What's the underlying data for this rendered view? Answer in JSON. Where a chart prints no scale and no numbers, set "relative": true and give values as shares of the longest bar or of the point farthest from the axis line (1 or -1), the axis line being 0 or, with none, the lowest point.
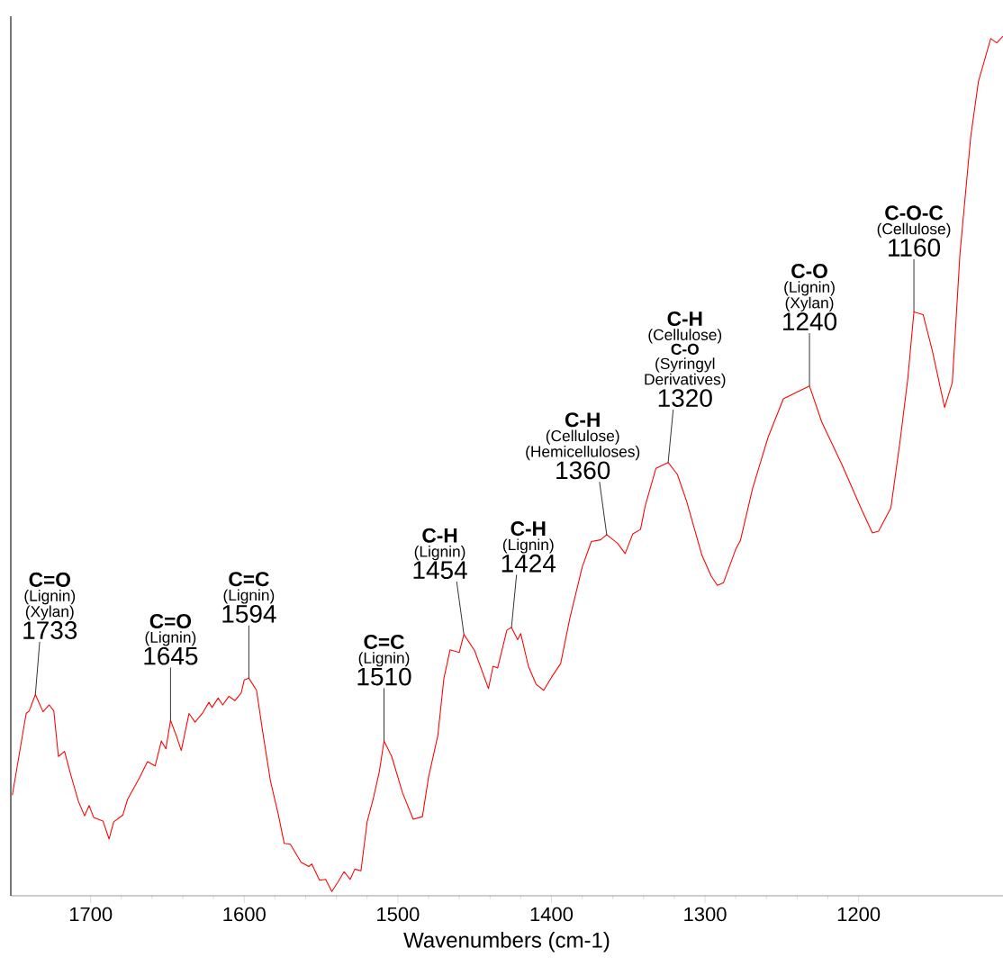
{
  "chart_data": {
    "type": "line",
    "relative": true,
    "color": "#ff0000",
    "xlabel": "Wavenumbers (cm-1)",
    "xlim": [
      1752,
      1106
    ],
    "xticks": [
      1700,
      1600,
      1500,
      1400,
      1300,
      1200
    ],
    "x": [
      1751,
      1742,
      1740,
      1736,
      1731,
      1727,
      1724,
      1721,
      1717,
      1713,
      1708,
      1704,
      1701,
      1698,
      1692,
      1688,
      1685,
      1679,
      1676,
      1668,
      1663,
      1658,
      1654,
      1651,
      1648,
      1644,
      1641,
      1636,
      1632,
      1627,
      1623,
      1621,
      1617,
      1614,
      1610,
      1606,
      1602,
      1600,
      1597,
      1592,
      1588,
      1583,
      1578,
      1574,
      1570,
      1563,
      1558,
      1556,
      1551,
      1547,
      1543,
      1539,
      1535,
      1531,
      1528,
      1524,
      1520,
      1516,
      1512,
      1509,
      1504,
      1497,
      1490,
      1484,
      1480,
      1474,
      1470,
      1466,
      1460,
      1457,
      1450,
      1441,
      1438,
      1435,
      1429,
      1426,
      1422,
      1420,
      1415,
      1410,
      1405,
      1400,
      1394,
      1388,
      1380,
      1374,
      1368,
      1364,
      1357,
      1352,
      1347,
      1342,
      1339,
      1332,
      1324,
      1318,
      1312,
      1302,
      1296,
      1292,
      1288,
      1280,
      1277,
      1269,
      1259,
      1249,
      1241,
      1232,
      1224,
      1211,
      1198,
      1191,
      1187,
      1179,
      1173,
      1168,
      1164,
      1158,
      1152,
      1144,
      1139,
      1134,
      1127,
      1122,
      1114,
      1110,
      1106
    ],
    "values": [
      0.117,
      0.212,
      0.215,
      0.234,
      0.214,
      0.222,
      0.215,
      0.162,
      0.168,
      0.141,
      0.11,
      0.093,
      0.105,
      0.091,
      0.087,
      0.066,
      0.086,
      0.094,
      0.112,
      0.138,
      0.156,
      0.151,
      0.18,
      0.171,
      0.204,
      0.185,
      0.169,
      0.212,
      0.202,
      0.213,
      0.225,
      0.219,
      0.23,
      0.222,
      0.232,
      0.227,
      0.236,
      0.251,
      0.253,
      0.239,
      0.191,
      0.134,
      0.096,
      0.061,
      0.06,
      0.039,
      0.034,
      0.037,
      0.018,
      0.019,
      0.005,
      0.016,
      0.028,
      0.019,
      0.031,
      0.029,
      0.086,
      0.113,
      0.145,
      0.18,
      0.162,
      0.12,
      0.089,
      0.092,
      0.138,
      0.186,
      0.253,
      0.286,
      0.283,
      0.304,
      0.285,
      0.241,
      0.267,
      0.265,
      0.309,
      0.312,
      0.298,
      0.305,
      0.267,
      0.246,
      0.239,
      0.254,
      0.27,
      0.323,
      0.382,
      0.412,
      0.414,
      0.42,
      0.41,
      0.398,
      0.421,
      0.426,
      0.453,
      0.497,
      0.504,
      0.49,
      0.459,
      0.396,
      0.372,
      0.361,
      0.364,
      0.403,
      0.413,
      0.474,
      0.533,
      0.578,
      0.585,
      0.593,
      0.551,
      0.502,
      0.449,
      0.422,
      0.424,
      0.451,
      0.529,
      0.601,
      0.679,
      0.676,
      0.634,
      0.568,
      0.597,
      0.747,
      0.883,
      0.947,
      0.997,
      0.992,
      1.0
    ],
    "annotations": [
      "**C=O**",
      "(Lignin)",
      "(Xylan)",
      {
        "text": "1733",
        "x": 1736,
        "y": 0.234
      },
      "**C=O**",
      "(Lignin)",
      {
        "text": "1645",
        "x": 1648,
        "y": 0.204
      },
      "**C=C**",
      "(Lignin)",
      {
        "text": "1594",
        "x": 1597,
        "y": 0.253
      },
      "**C=C**",
      "(Lignin)",
      {
        "text": "1510",
        "x": 1509,
        "y": 0.18
      },
      "**C-H**",
      "(Lignin)",
      {
        "text": "1454",
        "x": 1457,
        "y": 0.304
      },
      "**C-H**",
      "(Lignin)",
      {
        "text": "1424",
        "x": 1426,
        "y": 0.312
      },
      "**C-H**",
      "(Cellulose)",
      "(Hemicelluloses)",
      {
        "text": "1360",
        "x": 1364,
        "y": 0.42
      },
      "**C-H**",
      "(Cellulose)",
      "**C-O**",
      "(Syringyl",
      "Derivatives)",
      {
        "text": "1320",
        "x": 1324,
        "y": 0.504
      },
      "**C-O**",
      "(Lignin)",
      "(Xylan)",
      {
        "text": "1240",
        "x": 1232,
        "y": 0.593
      },
      "**C-O-C**",
      "(Cellulose)",
      {
        "text": "1160",
        "x": 1164,
        "y": 0.679
      }
    ]
  }
}
